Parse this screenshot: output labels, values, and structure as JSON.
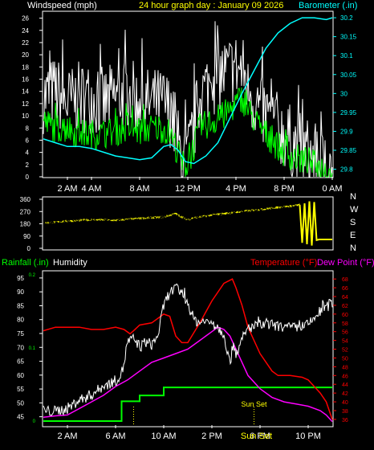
{
  "chart_data": [
    {
      "type": "line",
      "title": "24 hour graph day : January 09 2026",
      "ylabel": "Windspeed (mph)",
      "y2label": "Barometer (.in)",
      "ylim": [
        0,
        27
      ],
      "y2lim": [
        29.78,
        30.215
      ],
      "yticks": [
        "0",
        "2",
        "4",
        "6",
        "8",
        "10",
        "12",
        "14",
        "16",
        "18",
        "20",
        "22",
        "24",
        "26"
      ],
      "y2ticks": [
        "29.8",
        "29.85",
        "29.9",
        "29.95",
        "30",
        "30.05",
        "30.1",
        "30.15",
        "30.2"
      ],
      "xlabels": [
        {
          "t": 2,
          "label": "2 AM"
        },
        {
          "t": 4,
          "label": "4 AM"
        },
        {
          "t": 8,
          "label": "8 AM"
        },
        {
          "t": 12,
          "label": "12 PM"
        },
        {
          "t": 16,
          "label": "4 PM"
        },
        {
          "t": 20,
          "label": "8 PM"
        },
        {
          "t": 24,
          "label": "0 AM"
        }
      ],
      "series": [
        {
          "color": "#ffffff",
          "axis": "left",
          "style": "noisy",
          "noise": 6,
          "points": [
            [
              0,
              13
            ],
            [
              1,
              14
            ],
            [
              2,
              12
            ],
            [
              3,
              13
            ],
            [
              4,
              13
            ],
            [
              5,
              12
            ],
            [
              6,
              13
            ],
            [
              7,
              14
            ],
            [
              8,
              12
            ],
            [
              9,
              12
            ],
            [
              10,
              12
            ],
            [
              10.5,
              11
            ],
            [
              11,
              7
            ],
            [
              11.5,
              3
            ],
            [
              12,
              3
            ],
            [
              12.5,
              8
            ],
            [
              13,
              13
            ],
            [
              14,
              16
            ],
            [
              15,
              17
            ],
            [
              16,
              18
            ],
            [
              16.7,
              17
            ],
            [
              17,
              14
            ],
            [
              18,
              11
            ],
            [
              19,
              9
            ],
            [
              20,
              7
            ],
            [
              21,
              5
            ],
            [
              22,
              4
            ],
            [
              23,
              2
            ],
            [
              24,
              1
            ]
          ]
        },
        {
          "color": "#00ff00",
          "axis": "left",
          "style": "noisy",
          "noise": 2.5,
          "points": [
            [
              0,
              9
            ],
            [
              1,
              8
            ],
            [
              2,
              8
            ],
            [
              3,
              7
            ],
            [
              4,
              7
            ],
            [
              5,
              7
            ],
            [
              6,
              7.5
            ],
            [
              7,
              8
            ],
            [
              8,
              7.5
            ],
            [
              9,
              8
            ],
            [
              10,
              8
            ],
            [
              10.5,
              7
            ],
            [
              11,
              5
            ],
            [
              11.5,
              2
            ],
            [
              12,
              2
            ],
            [
              12.5,
              5
            ],
            [
              13,
              8
            ],
            [
              14,
              9
            ],
            [
              15,
              10
            ],
            [
              16,
              12
            ],
            [
              16.5,
              13
            ],
            [
              17,
              11
            ],
            [
              18,
              8
            ],
            [
              19,
              6
            ],
            [
              20,
              4
            ],
            [
              21,
              3
            ],
            [
              22,
              2.5
            ],
            [
              23,
              1.5
            ],
            [
              24,
              0.5
            ]
          ]
        },
        {
          "color": "#00ffff",
          "axis": "right",
          "style": "smooth",
          "points": [
            [
              0,
              29.88
            ],
            [
              1,
              29.87
            ],
            [
              2,
              29.86
            ],
            [
              3,
              29.86
            ],
            [
              4,
              29.855
            ],
            [
              5,
              29.845
            ],
            [
              6,
              29.835
            ],
            [
              7,
              29.83
            ],
            [
              8,
              29.825
            ],
            [
              9,
              29.83
            ],
            [
              10,
              29.86
            ],
            [
              10.6,
              29.865
            ],
            [
              11.2,
              29.85
            ],
            [
              11.8,
              29.82
            ],
            [
              12.5,
              29.815
            ],
            [
              13.5,
              29.835
            ],
            [
              14.5,
              29.87
            ],
            [
              15.5,
              29.935
            ],
            [
              16.5,
              30.0
            ],
            [
              17.5,
              30.06
            ],
            [
              18.5,
              30.12
            ],
            [
              19.5,
              30.16
            ],
            [
              20.5,
              30.185
            ],
            [
              21.5,
              30.2
            ],
            [
              22.5,
              30.2
            ],
            [
              23.5,
              30.195
            ],
            [
              24,
              30.2
            ]
          ]
        }
      ]
    },
    {
      "type": "line",
      "ylim": [
        0,
        360
      ],
      "yticks": [
        "360",
        "270",
        "180",
        "90",
        "0"
      ],
      "compass": [
        "N",
        "W",
        "S",
        "E",
        "N"
      ],
      "series": [
        {
          "color": "#ffff00",
          "style": "band",
          "width": 18,
          "points": [
            [
              0,
              185
            ],
            [
              2,
              200
            ],
            [
              4,
              210
            ],
            [
              6,
              205
            ],
            [
              8,
              220
            ],
            [
              10,
              230
            ],
            [
              11,
              255
            ],
            [
              11.5,
              230
            ],
            [
              12,
              210
            ],
            [
              12.5,
              225
            ],
            [
              13,
              230
            ],
            [
              14,
              245
            ],
            [
              16,
              265
            ],
            [
              18,
              285
            ],
            [
              20,
              305
            ],
            [
              21,
              315
            ],
            [
              21.3,
              320
            ]
          ]
        },
        {
          "color": "#ffff00",
          "style": "spike",
          "points": [
            [
              21.3,
              320
            ],
            [
              21.5,
              40
            ],
            [
              21.7,
              330
            ],
            [
              21.9,
              30
            ],
            [
              22.1,
              345
            ],
            [
              22.3,
              20
            ],
            [
              22.5,
              340
            ],
            [
              22.7,
              60
            ],
            [
              22.9,
              65
            ],
            [
              24,
              65
            ]
          ]
        }
      ]
    },
    {
      "type": "line",
      "y1label": "Rainfall (.in)",
      "y2label": "Humidity",
      "y3label": "Temperature (°F)",
      "y4label": "Dew Point (°F)",
      "ylim": [
        42,
        97
      ],
      "y3lim": [
        34.7,
        69.5
      ],
      "yticks": [
        "45",
        "50",
        "55",
        "60",
        "65",
        "70",
        "75",
        "80",
        "85",
        "90",
        "95"
      ],
      "rainticks": [
        "0.2",
        "0.1",
        "0"
      ],
      "y3ticks": [
        "36",
        "38",
        "40",
        "42",
        "44",
        "46",
        "48",
        "50",
        "52",
        "54",
        "56",
        "58",
        "60",
        "62",
        "64",
        "66",
        "68"
      ],
      "xlabels": [
        {
          "t": 2,
          "label": "2 AM"
        },
        {
          "t": 6,
          "label": "6 AM"
        },
        {
          "t": 10,
          "label": "10 AM"
        },
        {
          "t": 14,
          "label": "2 PM"
        },
        {
          "t": 18,
          "label": "6 PM"
        },
        {
          "t": 22,
          "label": "10 PM"
        }
      ],
      "markers": [
        {
          "t": 7.5,
          "label": ""
        },
        {
          "t": 17.5,
          "label": "Sun Set"
        }
      ],
      "bottom_overlay": "Sun Set",
      "series": [
        {
          "color": "#ff0000",
          "axis": "temp",
          "style": "smooth",
          "points": [
            [
              0,
              56.2
            ],
            [
              1,
              57
            ],
            [
              2,
              57
            ],
            [
              3,
              57
            ],
            [
              4,
              56.5
            ],
            [
              5,
              56.5
            ],
            [
              6,
              57
            ],
            [
              6.7,
              56.5
            ],
            [
              7.2,
              55.5
            ],
            [
              7.5,
              56.2
            ],
            [
              8,
              57.5
            ],
            [
              9,
              58
            ],
            [
              10,
              60
            ],
            [
              10.5,
              59.5
            ],
            [
              11,
              55
            ],
            [
              11.5,
              53.5
            ],
            [
              12,
              53.5
            ],
            [
              13,
              58
            ],
            [
              14,
              63
            ],
            [
              15,
              67
            ],
            [
              15.7,
              68
            ],
            [
              16,
              66
            ],
            [
              16.5,
              62
            ],
            [
              17,
              57
            ],
            [
              18,
              51
            ],
            [
              19,
              47
            ],
            [
              19.5,
              46
            ],
            [
              20.5,
              46
            ],
            [
              21.5,
              45.6
            ],
            [
              22,
              45
            ],
            [
              23,
              42
            ],
            [
              23.5,
              40
            ],
            [
              24,
              36
            ]
          ]
        },
        {
          "color": "#ff00ff",
          "axis": "temp",
          "style": "smooth",
          "points": [
            [
              0,
              36.5
            ],
            [
              1,
              36.8
            ],
            [
              2,
              37
            ],
            [
              3,
              38.5
            ],
            [
              4,
              40
            ],
            [
              5,
              41.5
            ],
            [
              6,
              43.5
            ],
            [
              7,
              45
            ],
            [
              8,
              47
            ],
            [
              9,
              49
            ],
            [
              10,
              50
            ],
            [
              11,
              51
            ],
            [
              12,
              52
            ],
            [
              13,
              54
            ],
            [
              14,
              56
            ],
            [
              14.5,
              57
            ],
            [
              15,
              56.5
            ],
            [
              15.5,
              55
            ],
            [
              16,
              52
            ],
            [
              16.5,
              49
            ],
            [
              17,
              46
            ],
            [
              18,
              43
            ],
            [
              19,
              41
            ],
            [
              20,
              40
            ],
            [
              21,
              39.5
            ],
            [
              22,
              39
            ],
            [
              23,
              38
            ],
            [
              23.5,
              37
            ],
            [
              24,
              35.5
            ]
          ]
        },
        {
          "color": "#ffffff",
          "axis": "left",
          "style": "noisy",
          "noise": 2,
          "points": [
            [
              0,
              47
            ],
            [
              1,
              47
            ],
            [
              2,
              48
            ],
            [
              3,
              51
            ],
            [
              4,
              53
            ],
            [
              5,
              56
            ],
            [
              6,
              58
            ],
            [
              6.4,
              60
            ],
            [
              6.6,
              62
            ],
            [
              7,
              72
            ],
            [
              7.5,
              73
            ],
            [
              8,
              70
            ],
            [
              8.5,
              72
            ],
            [
              9,
              71
            ],
            [
              9.5,
              74
            ],
            [
              10,
              85
            ],
            [
              10.5,
              90
            ],
            [
              11,
              91
            ],
            [
              11.5,
              90
            ],
            [
              12,
              86
            ],
            [
              12.5,
              80
            ],
            [
              13,
              79
            ],
            [
              14,
              79
            ],
            [
              15,
              75
            ],
            [
              15.5,
              64
            ],
            [
              15.8,
              72
            ],
            [
              16,
              68
            ],
            [
              16.5,
              72
            ],
            [
              17,
              77
            ],
            [
              18,
              78
            ],
            [
              19,
              78
            ],
            [
              20,
              77
            ],
            [
              21,
              77
            ],
            [
              22,
              78
            ],
            [
              23,
              83
            ],
            [
              24,
              86
            ]
          ]
        },
        {
          "color": "#00ff00",
          "axis": "rain",
          "style": "step",
          "points": [
            [
              0,
              0
            ],
            [
              6.5,
              0
            ],
            [
              6.5,
              0.027
            ],
            [
              8,
              0.027
            ],
            [
              8,
              0.035
            ],
            [
              10,
              0.035
            ],
            [
              10,
              0.046
            ],
            [
              24,
              0.046
            ]
          ]
        }
      ]
    }
  ]
}
